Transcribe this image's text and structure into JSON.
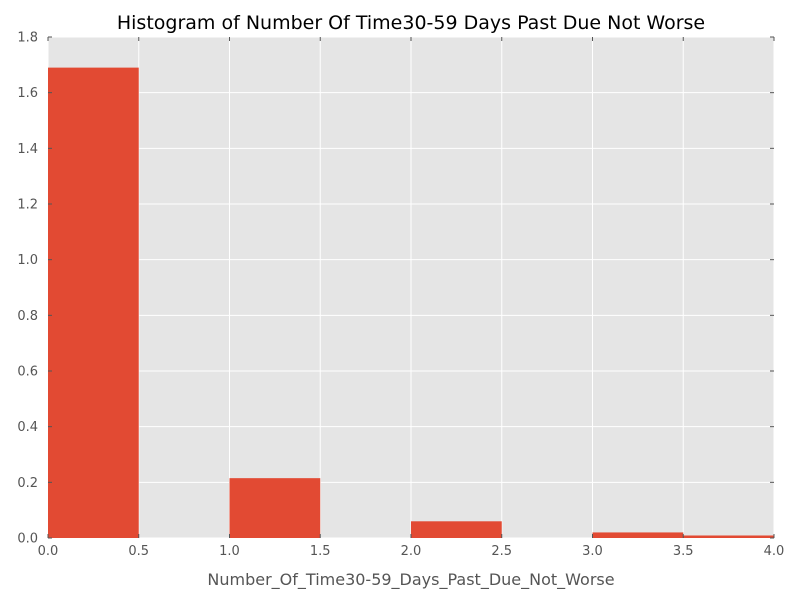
{
  "chart_data": {
    "type": "bar",
    "title": "Histogram of Number Of Time30-59 Days Past Due Not Worse",
    "xlabel": "Number_Of_Time30-59_Days_Past_Due_Not_Worse",
    "ylabel": "",
    "xlim": [
      0.0,
      4.0
    ],
    "ylim": [
      0.0,
      1.8
    ],
    "xticks": [
      "0.0",
      "0.5",
      "1.0",
      "1.5",
      "2.0",
      "2.5",
      "3.0",
      "3.5",
      "4.0"
    ],
    "yticks": [
      "0.0",
      "0.2",
      "0.4",
      "0.6",
      "0.8",
      "1.0",
      "1.2",
      "1.4",
      "1.6",
      "1.8"
    ],
    "bins": [
      {
        "x0": 0.0,
        "x1": 0.5,
        "value": 1.69
      },
      {
        "x0": 0.5,
        "x1": 1.0,
        "value": 0.0
      },
      {
        "x0": 1.0,
        "x1": 1.5,
        "value": 0.215
      },
      {
        "x0": 1.5,
        "x1": 2.0,
        "value": 0.0
      },
      {
        "x0": 2.0,
        "x1": 2.5,
        "value": 0.06
      },
      {
        "x0": 2.5,
        "x1": 3.0,
        "value": 0.0
      },
      {
        "x0": 3.0,
        "x1": 3.5,
        "value": 0.02
      },
      {
        "x0": 3.5,
        "x1": 4.0,
        "value": 0.009
      }
    ],
    "grid": true,
    "colors": {
      "bar": "#E24A33",
      "background": "#E5E5E5",
      "grid": "#FFFFFF"
    }
  }
}
